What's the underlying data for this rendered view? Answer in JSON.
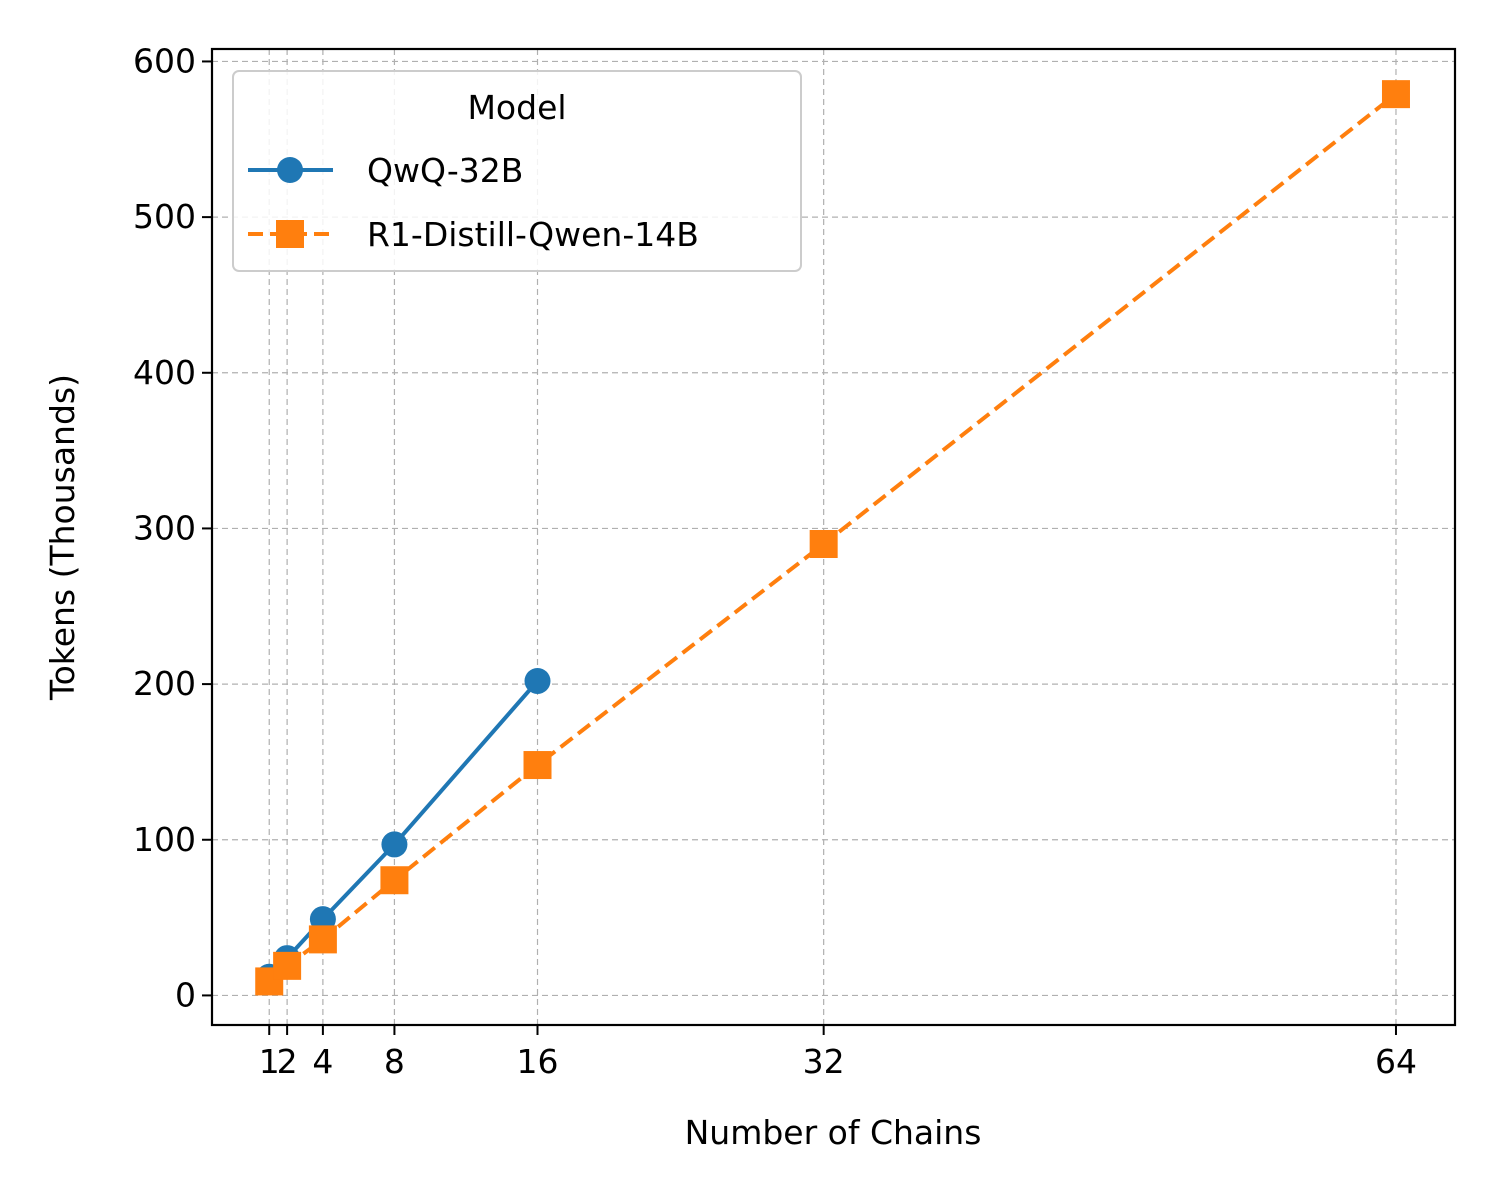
{
  "chart_data": {
    "type": "line",
    "xlabel": "Number of Chains",
    "ylabel": "Tokens (Thousands)",
    "xlim": [
      -2.2,
      67.3
    ],
    "ylim": [
      -19,
      608
    ],
    "xticks": [
      1,
      2,
      4,
      8,
      16,
      32,
      64
    ],
    "yticks": [
      0,
      100,
      200,
      300,
      400,
      500,
      600
    ],
    "grid": true,
    "legend": {
      "title": "Model",
      "position": "top-left"
    },
    "series": [
      {
        "name": "QwQ-32B",
        "color": "#1f77b4",
        "marker": "circle",
        "line_style": "solid",
        "x": [
          1,
          2,
          4,
          8,
          16
        ],
        "y": [
          12,
          24,
          49,
          97,
          202
        ]
      },
      {
        "name": "R1-Distill-Qwen-14B",
        "color": "#ff7f0e",
        "marker": "square",
        "line_style": "dashed",
        "x": [
          1,
          2,
          4,
          8,
          16,
          32,
          64
        ],
        "y": [
          9,
          19,
          36,
          74,
          148,
          290,
          579
        ]
      }
    ]
  }
}
